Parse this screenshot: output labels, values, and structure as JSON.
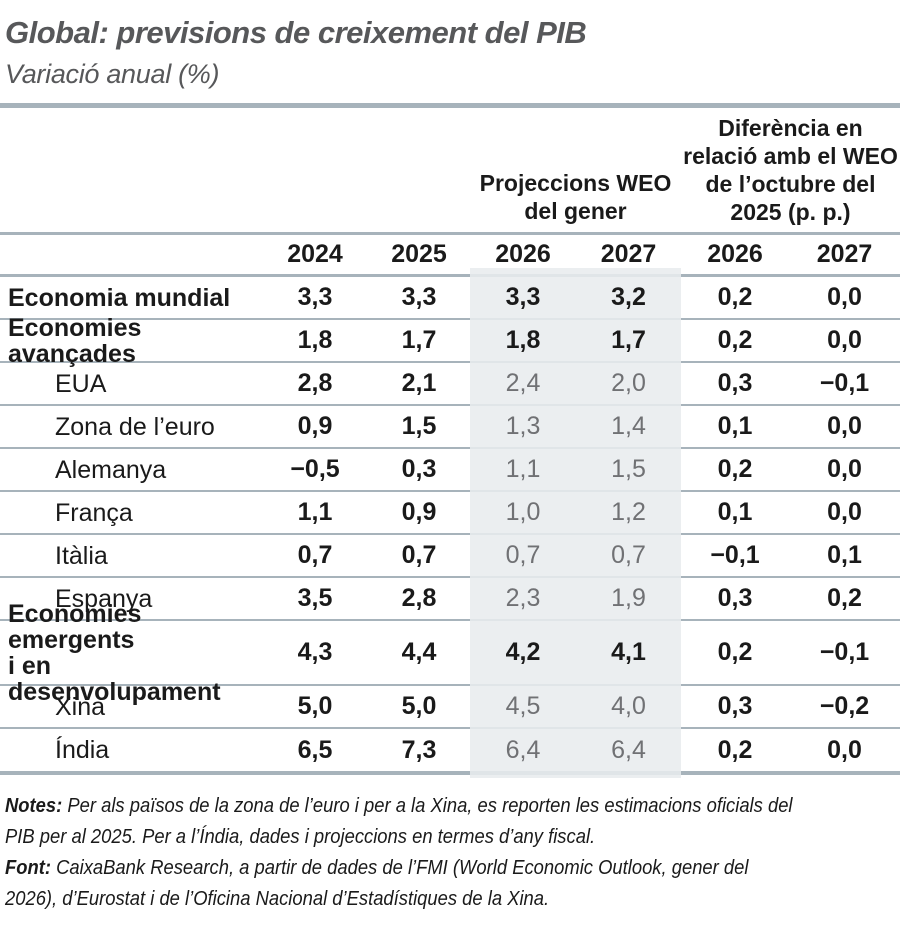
{
  "chart_data": {
    "type": "table",
    "title": "Global: previsions de creixement del PIB",
    "subtitle": "Variació anual (%)",
    "group_headers": {
      "weo_lines": [
        "Projeccions WEO",
        "del gener"
      ],
      "diff_lines": [
        "Diferència en",
        "relació amb el WEO",
        "de l’octubre del",
        "2025 (p. p.)"
      ]
    },
    "columns": [
      "2024",
      "2025",
      "2026",
      "2027",
      "2026",
      "2027"
    ],
    "rows": [
      {
        "label": "Economia mundial",
        "style": "aggregate",
        "values": [
          "3,3",
          "3,3",
          "3,3",
          "3,2",
          "0,2",
          "0,0"
        ]
      },
      {
        "label": "Economies avançades",
        "style": "aggregate",
        "values": [
          "1,8",
          "1,7",
          "1,8",
          "1,7",
          "0,2",
          "0,0"
        ]
      },
      {
        "label": "EUA",
        "style": "country",
        "values": [
          "2,8",
          "2,1",
          "2,4",
          "2,0",
          "0,3",
          "−0,1"
        ]
      },
      {
        "label": "Zona de l’euro",
        "style": "country",
        "values": [
          "0,9",
          "1,5",
          "1,3",
          "1,4",
          "0,1",
          "0,0"
        ]
      },
      {
        "label": "Alemanya",
        "style": "country",
        "values": [
          "−0,5",
          "0,3",
          "1,1",
          "1,5",
          "0,2",
          "0,0"
        ]
      },
      {
        "label": "França",
        "style": "country",
        "values": [
          "1,1",
          "0,9",
          "1,0",
          "1,2",
          "0,1",
          "0,0"
        ]
      },
      {
        "label": "Itàlia",
        "style": "country",
        "values": [
          "0,7",
          "0,7",
          "0,7",
          "0,7",
          "−0,1",
          "0,1"
        ]
      },
      {
        "label": "Espanya",
        "style": "country",
        "values": [
          "3,5",
          "2,8",
          "2,3",
          "1,9",
          "0,3",
          "0,2"
        ]
      },
      {
        "label": "Economies emergents\ni en desenvolupament",
        "style": "aggregate",
        "values": [
          "4,3",
          "4,4",
          "4,2",
          "4,1",
          "0,2",
          "−0,1"
        ]
      },
      {
        "label": "Xina",
        "style": "country",
        "values": [
          "5,0",
          "5,0",
          "4,5",
          "4,0",
          "0,3",
          "−0,2"
        ]
      },
      {
        "label": "Índia",
        "style": "country",
        "values": [
          "6,5",
          "7,3",
          "6,4",
          "6,4",
          "0,2",
          "0,0"
        ]
      }
    ],
    "layout": {
      "shaded_column_group": "Projeccions WEO del gener",
      "grid": "horizontal-rules-only"
    }
  },
  "notes": {
    "lines": [
      {
        "bold": "Notes:",
        "text": " Per als països de la zona de l’euro i per a la Xina, es reporten les estimacions oficials del"
      },
      {
        "bold": "",
        "text": "PIB per al 2025. Per a l’Índia, dades i projeccions en termes d’any fiscal."
      },
      {
        "bold": "Font:",
        "text": " CaixaBank Research, a partir de dades de l’FMI (World Economic Outlook, gener del"
      },
      {
        "bold": "",
        "text": "2026), d’Eurostat i de l’Oficina Nacional d’Estadístiques de la Xina."
      }
    ]
  },
  "colors": {
    "title": "#57585a",
    "text": "#1a1a1a",
    "line": "#a7b3bb",
    "muted": "#707174",
    "band_base": "#e8ecee"
  }
}
